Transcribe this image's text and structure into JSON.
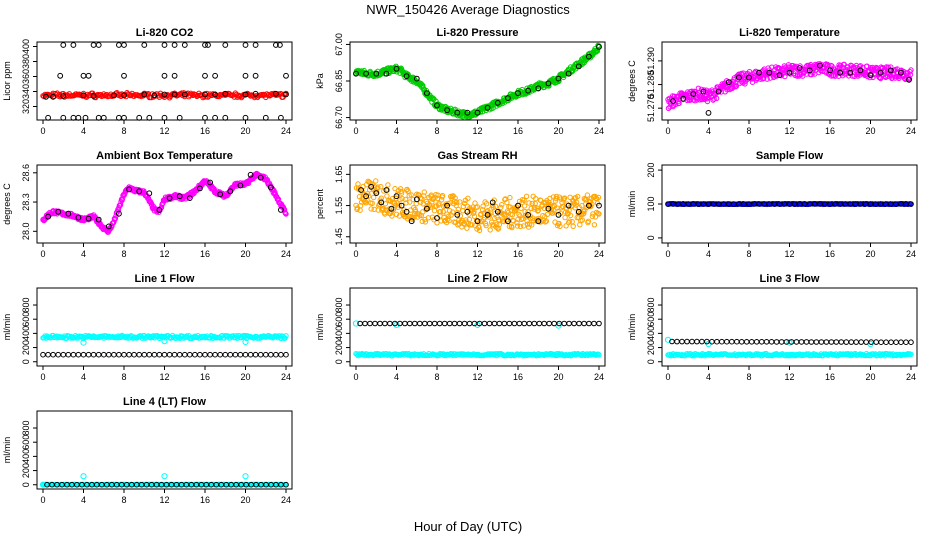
{
  "page_title": "NWR_150426  Average Diagnostics",
  "x_axis_label": "Hour of Day (UTC)",
  "chart_data": [
    {
      "id": "co2",
      "type": "scatter",
      "title": "Li-820 CO2",
      "ylabel": "Licor ppm",
      "xlim": [
        0,
        24
      ],
      "xticks": [
        0,
        4,
        8,
        12,
        16,
        20,
        24
      ],
      "ylim": [
        302,
        406
      ],
      "yticks": [
        320,
        340,
        360,
        380,
        400
      ],
      "series": [
        {
          "color": "#ff0000",
          "style": "band",
          "y0": 333,
          "y1": 337,
          "amp": 1.5
        },
        {
          "color": "#000000",
          "style": "points",
          "x": [
            0.3,
            1,
            2,
            4,
            5,
            7,
            8,
            10,
            11,
            12,
            13,
            14,
            16,
            17,
            18,
            20,
            21,
            23,
            24
          ],
          "y": [
            333,
            333,
            334,
            335,
            334,
            335,
            335,
            336,
            335,
            336,
            336,
            336,
            336,
            336,
            337,
            336,
            337,
            337,
            336
          ]
        },
        {
          "color": "#000000",
          "style": "points",
          "x": [
            2,
            3,
            5,
            5.5,
            7.5,
            8,
            10,
            12,
            13,
            14,
            16,
            16.3,
            18,
            20,
            21,
            23,
            23.4
          ],
          "y": [
            402,
            402,
            402,
            402,
            402,
            402,
            402,
            402,
            402,
            402,
            402,
            402,
            402,
            402,
            402,
            402,
            402
          ]
        },
        {
          "color": "#000000",
          "style": "points",
          "x": [
            1.7,
            4,
            4.5,
            8,
            12,
            13,
            16,
            17,
            20,
            21,
            24
          ],
          "y": [
            361,
            361,
            361,
            361,
            361,
            361,
            361,
            361,
            361,
            361,
            361
          ]
        },
        {
          "color": "#000000",
          "style": "points",
          "x": [
            0.5,
            2,
            3,
            3.5,
            4.2,
            5.5,
            6,
            7.5,
            8,
            9.5,
            10.5,
            12,
            13.5,
            16,
            17,
            18,
            20,
            22,
            23.5
          ],
          "y": [
            305,
            305,
            305,
            305,
            305,
            305,
            305,
            305,
            305,
            305,
            305,
            305,
            305,
            305,
            305,
            305,
            305,
            305,
            305
          ]
        }
      ]
    },
    {
      "id": "pressure",
      "type": "scatter",
      "title": "Li-820 Pressure",
      "ylabel": "kPa",
      "xlim": [
        0,
        24
      ],
      "xticks": [
        0,
        4,
        8,
        12,
        16,
        20,
        24
      ],
      "ylim": [
        66.69,
        67.01
      ],
      "yticks": [
        66.7,
        66.85,
        67.0
      ],
      "ytick_labels": [
        "66.70",
        "66.85",
        "67.00"
      ],
      "series": [
        {
          "color": "#00cc00",
          "style": "curve",
          "spread": 0.012,
          "x": [
            0,
            1,
            2,
            3,
            4,
            4.5,
            5,
            6,
            7,
            8,
            9,
            10,
            11,
            12,
            13,
            14,
            15,
            16,
            17,
            18,
            19,
            20,
            21,
            22,
            23,
            24
          ],
          "y": [
            66.89,
            66.88,
            66.88,
            66.89,
            66.9,
            66.89,
            66.87,
            66.85,
            66.8,
            66.75,
            66.73,
            66.72,
            66.71,
            66.72,
            66.74,
            66.76,
            66.78,
            66.8,
            66.81,
            66.83,
            66.84,
            66.86,
            66.89,
            66.92,
            66.95,
            66.99
          ]
        },
        {
          "color": "#000000",
          "style": "points",
          "x": [
            0,
            1,
            2,
            3,
            4,
            5,
            6,
            7,
            8,
            9,
            10,
            11,
            12,
            13,
            14,
            15,
            16,
            17,
            18,
            19,
            20,
            21,
            22,
            23,
            24
          ],
          "y": [
            66.88,
            66.88,
            66.88,
            66.88,
            66.9,
            66.87,
            66.86,
            66.8,
            66.75,
            66.73,
            66.72,
            66.72,
            66.72,
            66.74,
            66.76,
            66.78,
            66.8,
            66.81,
            66.82,
            66.84,
            66.86,
            66.88,
            66.91,
            66.95,
            66.99
          ]
        }
      ]
    },
    {
      "id": "li820temp",
      "type": "scatter",
      "title": "Li-820 Temperature",
      "ylabel": "degrees C",
      "xlim": [
        0,
        24
      ],
      "xticks": [
        0,
        4,
        8,
        12,
        16,
        20,
        24
      ],
      "ylim": [
        51.265,
        51.298
      ],
      "yticks": [
        51.27,
        51.28,
        51.29
      ],
      "ytick_labels": [
        "51.270",
        "51.280",
        "51.290"
      ],
      "series": [
        {
          "color": "#ff00ff",
          "style": "curve",
          "spread": 0.0025,
          "x": [
            0,
            1,
            2,
            3,
            4,
            5,
            6,
            7,
            8,
            9,
            10,
            11,
            12,
            13,
            14,
            15,
            16,
            17,
            18,
            19,
            20,
            21,
            22,
            23,
            24
          ],
          "y": [
            51.272,
            51.274,
            51.275,
            51.276,
            51.275,
            51.277,
            51.28,
            51.282,
            51.283,
            51.284,
            51.285,
            51.285,
            51.286,
            51.286,
            51.286,
            51.287,
            51.286,
            51.286,
            51.286,
            51.286,
            51.285,
            51.285,
            51.285,
            51.285,
            51.284
          ]
        },
        {
          "color": "#000000",
          "style": "points",
          "x": [
            0.5,
            1.5,
            2.5,
            3.5,
            4,
            5,
            6,
            7,
            8,
            9,
            10,
            11,
            12,
            13,
            14,
            15,
            16,
            17,
            18,
            19,
            20,
            21,
            22,
            23,
            23.8
          ],
          "y": [
            51.273,
            51.274,
            51.276,
            51.277,
            51.268,
            51.277,
            51.281,
            51.283,
            51.283,
            51.285,
            51.285,
            51.284,
            51.285,
            51.287,
            51.286,
            51.288,
            51.286,
            51.285,
            51.285,
            51.286,
            51.284,
            51.285,
            51.286,
            51.285,
            51.282
          ]
        }
      ]
    },
    {
      "id": "boxtemp",
      "type": "scatter",
      "title": "Ambient Box Temperature",
      "ylabel": "degrees C",
      "xlim": [
        0,
        24
      ],
      "xticks": [
        0,
        4,
        8,
        12,
        16,
        20,
        24
      ],
      "ylim": [
        27.88,
        28.68
      ],
      "yticks": [
        28.0,
        28.3,
        28.6
      ],
      "ytick_labels": [
        "28.0",
        "28.3",
        "28.6"
      ],
      "series": [
        {
          "color": "#ff00ff",
          "style": "curve",
          "spread": 0.018,
          "x": [
            0,
            0.5,
            1,
            2,
            3,
            4,
            5,
            6,
            6.5,
            7,
            8,
            8.5,
            9,
            10,
            11,
            11.5,
            12,
            13,
            14,
            15,
            16,
            17,
            18,
            19,
            20,
            21,
            22,
            23,
            24
          ],
          "y": [
            28.11,
            28.17,
            28.2,
            28.18,
            28.16,
            28.12,
            28.15,
            28.03,
            28.0,
            28.1,
            28.38,
            28.45,
            28.42,
            28.4,
            28.22,
            28.2,
            28.33,
            28.36,
            28.34,
            28.41,
            28.52,
            28.41,
            28.36,
            28.48,
            28.48,
            28.58,
            28.54,
            28.37,
            28.18
          ]
        },
        {
          "color": "#000000",
          "style": "points",
          "x": [
            0.5,
            1.5,
            2.5,
            3.5,
            4.5,
            5.5,
            6.5,
            7.5,
            8.5,
            9.5,
            10.5,
            11.5,
            12.5,
            13.5,
            14.5,
            15.5,
            16.5,
            17.5,
            18.5,
            19.5,
            20.5,
            21.5,
            22.5,
            23.5
          ],
          "y": [
            28.15,
            28.2,
            28.18,
            28.14,
            28.13,
            28.12,
            28.05,
            28.18,
            28.43,
            28.41,
            28.39,
            28.22,
            28.34,
            28.36,
            28.34,
            28.44,
            28.5,
            28.38,
            28.41,
            28.47,
            28.58,
            28.55,
            28.45,
            28.22
          ]
        }
      ]
    },
    {
      "id": "rh",
      "type": "scatter",
      "title": "Gas Stream RH",
      "ylabel": "percent",
      "xlim": [
        0,
        24
      ],
      "xticks": [
        0,
        4,
        8,
        12,
        16,
        20,
        24
      ],
      "ylim": [
        1.43,
        1.68
      ],
      "yticks": [
        1.45,
        1.55,
        1.65
      ],
      "ytick_labels": [
        "1.45",
        "1.55",
        "1.65"
      ],
      "series": [
        {
          "color": "#ffa500",
          "style": "curve",
          "spread": 0.05,
          "x": [
            0,
            2,
            4,
            6,
            8,
            10,
            12,
            14,
            16,
            18,
            20,
            22,
            24
          ],
          "y": [
            1.58,
            1.58,
            1.56,
            1.55,
            1.54,
            1.53,
            1.52,
            1.52,
            1.53,
            1.53,
            1.53,
            1.53,
            1.54
          ]
        },
        {
          "color": "#000000",
          "style": "points",
          "x": [
            0.5,
            1,
            1.5,
            2,
            2.5,
            3,
            3.5,
            4,
            4.5,
            5,
            5.5,
            6,
            7,
            8,
            9,
            10,
            11,
            12,
            13,
            13.5,
            14,
            15,
            16,
            17,
            18,
            19,
            20,
            21,
            22,
            23,
            24
          ],
          "y": [
            1.6,
            1.58,
            1.61,
            1.59,
            1.56,
            1.6,
            1.54,
            1.58,
            1.55,
            1.53,
            1.5,
            1.57,
            1.54,
            1.51,
            1.55,
            1.52,
            1.53,
            1.5,
            1.52,
            1.56,
            1.53,
            1.5,
            1.55,
            1.52,
            1.5,
            1.54,
            1.52,
            1.55,
            1.53,
            1.55,
            1.55
          ]
        }
      ]
    },
    {
      "id": "sample",
      "type": "scatter",
      "title": "Sample Flow",
      "ylabel": "ml/min",
      "xlim": [
        0,
        24
      ],
      "xticks": [
        0,
        4,
        8,
        12,
        16,
        20,
        24
      ],
      "ylim": [
        -15,
        215
      ],
      "yticks": [
        0,
        100,
        200
      ],
      "series": [
        {
          "color": "#0000ff",
          "style": "band",
          "y0": 99,
          "y1": 101,
          "amp": 0
        },
        {
          "color": "#000000",
          "style": "dense",
          "y": 100
        }
      ]
    },
    {
      "id": "line1",
      "type": "scatter",
      "title": "Line 1 Flow",
      "ylabel": "ml/min",
      "xlim": [
        0,
        24
      ],
      "xticks": [
        0,
        4,
        8,
        12,
        16,
        20,
        24
      ],
      "ylim": [
        -60,
        1040
      ],
      "yticks": [
        0,
        200,
        400,
        600,
        800
      ],
      "series": [
        {
          "color": "#00ffff",
          "style": "band",
          "y0": 330,
          "y1": 370,
          "amp": 0,
          "spikes": [
            [
              4,
              270
            ],
            [
              12,
              290
            ],
            [
              20,
              280
            ]
          ]
        },
        {
          "color": "#000000",
          "style": "dense",
          "y": 100
        }
      ]
    },
    {
      "id": "line2",
      "type": "scatter",
      "title": "Line 2 Flow",
      "ylabel": "ml/min",
      "xlim": [
        0,
        24
      ],
      "xticks": [
        0,
        4,
        8,
        12,
        16,
        20,
        24
      ],
      "ylim": [
        -60,
        1040
      ],
      "yticks": [
        0,
        200,
        400,
        600,
        800
      ],
      "series": [
        {
          "color": "#00ffff",
          "style": "band",
          "y0": 85,
          "y1": 115,
          "amp": 0,
          "spikes": [
            [
              0,
              540
            ],
            [
              4,
              520
            ],
            [
              12,
              520
            ],
            [
              20,
              510
            ]
          ]
        },
        {
          "color": "#000000",
          "style": "dense",
          "y": 540,
          "x0": 0.4
        }
      ]
    },
    {
      "id": "line3",
      "type": "scatter",
      "title": "Line 3 Flow",
      "ylabel": "ml/min",
      "xlim": [
        0,
        24
      ],
      "xticks": [
        0,
        4,
        8,
        12,
        16,
        20,
        24
      ],
      "ylim": [
        -60,
        1040
      ],
      "yticks": [
        0,
        200,
        400,
        600,
        800
      ],
      "series": [
        {
          "color": "#00ffff",
          "style": "band",
          "y0": 85,
          "y1": 115,
          "amp": 0,
          "spikes": [
            [
              0,
              310
            ],
            [
              4,
              250
            ],
            [
              12,
              270
            ],
            [
              20,
              250
            ]
          ]
        },
        {
          "color": "#000000",
          "style": "dense",
          "y": 285,
          "slope": -10,
          "x0": 0.4
        }
      ]
    },
    {
      "id": "line4",
      "type": "scatter",
      "title": "Line 4 (LT) Flow",
      "ylabel": "ml/min",
      "xlim": [
        0,
        24
      ],
      "xticks": [
        0,
        4,
        8,
        12,
        16,
        20,
        24
      ],
      "ylim": [
        -60,
        1040
      ],
      "yticks": [
        0,
        200,
        400,
        600,
        800
      ],
      "series": [
        {
          "color": "#00ffff",
          "style": "band",
          "y0": 0,
          "y1": 5,
          "amp": 0,
          "spikes": [
            [
              0,
              0
            ],
            [
              4,
              120
            ],
            [
              12,
              120
            ],
            [
              20,
              120
            ]
          ]
        },
        {
          "color": "#000000",
          "style": "dense",
          "y": 0,
          "x0": 0.4
        }
      ]
    }
  ]
}
